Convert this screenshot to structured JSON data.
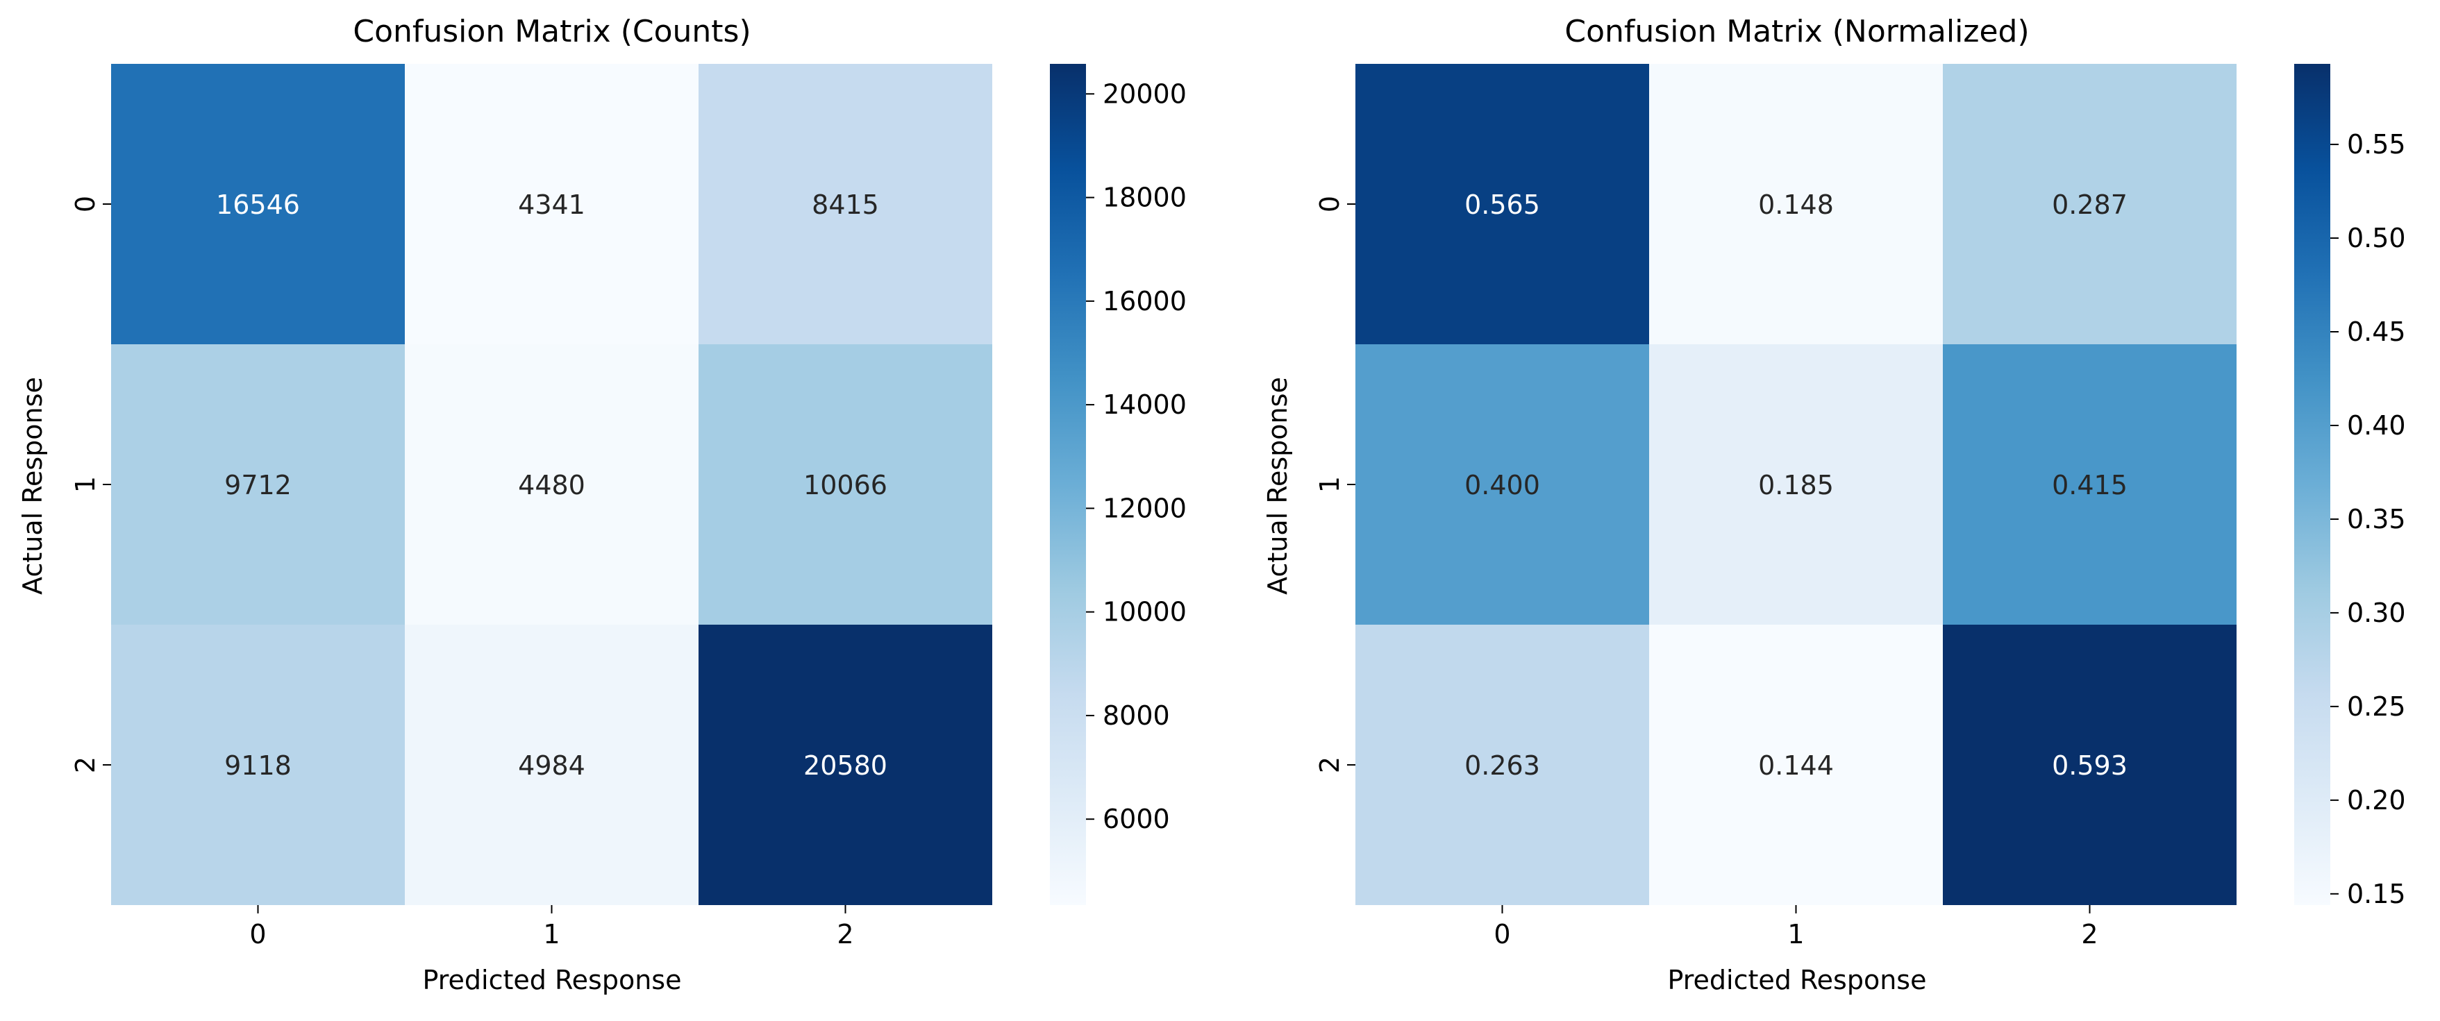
{
  "chart_data": [
    {
      "type": "heatmap",
      "title": "Confusion Matrix (Counts)",
      "xlabel": "Predicted Response",
      "ylabel": "Actual Response",
      "x_categories": [
        "0",
        "1",
        "2"
      ],
      "y_categories": [
        "0",
        "1",
        "2"
      ],
      "values": [
        [
          16546,
          4341,
          8415
        ],
        [
          9712,
          4480,
          10066
        ],
        [
          9118,
          4984,
          20580
        ]
      ],
      "cell_labels": [
        [
          "16546",
          "4341",
          "8415"
        ],
        [
          "9712",
          "4480",
          "10066"
        ],
        [
          "9118",
          "4984",
          "20580"
        ]
      ],
      "colormap": "Blues",
      "color_range": [
        4341,
        20580
      ],
      "colorbar_ticks": [
        6000,
        8000,
        10000,
        12000,
        14000,
        16000,
        18000,
        20000
      ],
      "colorbar_tick_labels": [
        "6000",
        "8000",
        "10000",
        "12000",
        "14000",
        "16000",
        "18000",
        "20000"
      ]
    },
    {
      "type": "heatmap",
      "title": "Confusion Matrix (Normalized)",
      "xlabel": "Predicted Response",
      "ylabel": "Actual Response",
      "x_categories": [
        "0",
        "1",
        "2"
      ],
      "y_categories": [
        "0",
        "1",
        "2"
      ],
      "values": [
        [
          0.565,
          0.148,
          0.287
        ],
        [
          0.4,
          0.185,
          0.415
        ],
        [
          0.263,
          0.144,
          0.593
        ]
      ],
      "cell_labels": [
        [
          "0.565",
          "0.148",
          "0.287"
        ],
        [
          "0.400",
          "0.185",
          "0.415"
        ],
        [
          "0.263",
          "0.144",
          "0.593"
        ]
      ],
      "colormap": "Blues",
      "color_range": [
        0.144,
        0.593
      ],
      "colorbar_ticks": [
        0.15,
        0.2,
        0.25,
        0.3,
        0.35,
        0.4,
        0.45,
        0.5,
        0.55
      ],
      "colorbar_tick_labels": [
        "0.15",
        "0.20",
        "0.25",
        "0.30",
        "0.35",
        "0.40",
        "0.45",
        "0.50",
        "0.55"
      ]
    }
  ],
  "colors": {
    "background": "#ffffff",
    "text": "#262626",
    "axis": "#000000",
    "blues_stops": [
      "#f7fbff",
      "#deebf7",
      "#c6dbef",
      "#9ecae1",
      "#6baed6",
      "#4292c6",
      "#2171b5",
      "#08519c",
      "#08306b"
    ]
  }
}
